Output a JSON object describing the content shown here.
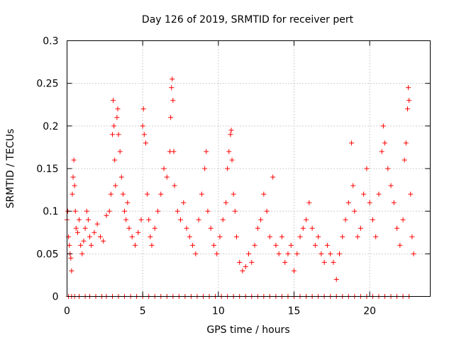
{
  "chart_data": {
    "type": "scatter",
    "title": "Day 126 of 2019, SRMTID for receiver pert",
    "xlabel": "GPS time / hours",
    "ylabel": "SRMTID / TECUs",
    "xlim": [
      0,
      24
    ],
    "ylim": [
      0,
      0.3
    ],
    "x_ticks": [
      0,
      5,
      10,
      15,
      20
    ],
    "x_tick_labels": [
      "0",
      "5",
      "10",
      "15",
      "20"
    ],
    "y_ticks": [
      0,
      0.05,
      0.1,
      0.15,
      0.2,
      0.25,
      0.3
    ],
    "y_tick_labels": [
      "0",
      "0.05",
      "0.1",
      "0.15",
      "0.2",
      "0.25",
      "0.3"
    ],
    "grid": true,
    "marker": "plus",
    "color": "#ff0000",
    "series": [
      {
        "name": "pert",
        "points": [
          [
            0.0,
            0.09
          ],
          [
            0.05,
            0.1
          ],
          [
            0.1,
            0.07
          ],
          [
            0.15,
            0.06
          ],
          [
            0.2,
            0.05
          ],
          [
            0.25,
            0.045
          ],
          [
            0.3,
            0.03
          ],
          [
            0.35,
            0.12
          ],
          [
            0.4,
            0.14
          ],
          [
            0.45,
            0.16
          ],
          [
            0.5,
            0.13
          ],
          [
            0.55,
            0.1
          ],
          [
            0.6,
            0.08
          ],
          [
            0.7,
            0.075
          ],
          [
            0.8,
            0.09
          ],
          [
            0.9,
            0.06
          ],
          [
            1.0,
            0.05
          ],
          [
            1.1,
            0.065
          ],
          [
            1.2,
            0.08
          ],
          [
            1.3,
            0.1
          ],
          [
            1.4,
            0.09
          ],
          [
            1.5,
            0.07
          ],
          [
            1.6,
            0.06
          ],
          [
            1.8,
            0.075
          ],
          [
            2.0,
            0.085
          ],
          [
            2.2,
            0.07
          ],
          [
            2.4,
            0.065
          ],
          [
            2.6,
            0.095
          ],
          [
            2.8,
            0.1
          ],
          [
            2.9,
            0.12
          ],
          [
            3.0,
            0.19
          ],
          [
            3.05,
            0.23
          ],
          [
            3.1,
            0.2
          ],
          [
            3.15,
            0.16
          ],
          [
            3.2,
            0.13
          ],
          [
            3.3,
            0.21
          ],
          [
            3.35,
            0.22
          ],
          [
            3.4,
            0.19
          ],
          [
            3.5,
            0.17
          ],
          [
            3.6,
            0.14
          ],
          [
            3.7,
            0.12
          ],
          [
            3.8,
            0.1
          ],
          [
            3.9,
            0.09
          ],
          [
            4.0,
            0.11
          ],
          [
            4.1,
            0.08
          ],
          [
            4.3,
            0.07
          ],
          [
            4.5,
            0.06
          ],
          [
            4.7,
            0.075
          ],
          [
            4.9,
            0.09
          ],
          [
            5.0,
            0.2
          ],
          [
            5.05,
            0.22
          ],
          [
            5.1,
            0.19
          ],
          [
            5.2,
            0.18
          ],
          [
            5.3,
            0.12
          ],
          [
            5.4,
            0.09
          ],
          [
            5.5,
            0.07
          ],
          [
            5.6,
            0.06
          ],
          [
            5.8,
            0.08
          ],
          [
            6.0,
            0.1
          ],
          [
            6.2,
            0.12
          ],
          [
            6.4,
            0.15
          ],
          [
            6.6,
            0.14
          ],
          [
            6.8,
            0.17
          ],
          [
            6.85,
            0.21
          ],
          [
            6.9,
            0.245
          ],
          [
            6.95,
            0.255
          ],
          [
            7.0,
            0.23
          ],
          [
            7.05,
            0.17
          ],
          [
            7.1,
            0.13
          ],
          [
            7.3,
            0.1
          ],
          [
            7.5,
            0.09
          ],
          [
            7.7,
            0.11
          ],
          [
            7.9,
            0.08
          ],
          [
            8.1,
            0.07
          ],
          [
            8.3,
            0.06
          ],
          [
            8.5,
            0.05
          ],
          [
            8.7,
            0.09
          ],
          [
            8.9,
            0.12
          ],
          [
            9.1,
            0.15
          ],
          [
            9.2,
            0.17
          ],
          [
            9.3,
            0.1
          ],
          [
            9.5,
            0.08
          ],
          [
            9.7,
            0.06
          ],
          [
            9.9,
            0.05
          ],
          [
            10.1,
            0.07
          ],
          [
            10.3,
            0.09
          ],
          [
            10.5,
            0.11
          ],
          [
            10.6,
            0.15
          ],
          [
            10.7,
            0.17
          ],
          [
            10.8,
            0.19
          ],
          [
            10.85,
            0.195
          ],
          [
            10.9,
            0.16
          ],
          [
            11.0,
            0.12
          ],
          [
            11.1,
            0.1
          ],
          [
            11.2,
            0.07
          ],
          [
            11.4,
            0.04
          ],
          [
            11.6,
            0.03
          ],
          [
            11.8,
            0.035
          ],
          [
            12.0,
            0.05
          ],
          [
            12.2,
            0.04
          ],
          [
            12.4,
            0.06
          ],
          [
            12.6,
            0.08
          ],
          [
            12.8,
            0.09
          ],
          [
            13.0,
            0.12
          ],
          [
            13.2,
            0.1
          ],
          [
            13.4,
            0.07
          ],
          [
            13.6,
            0.14
          ],
          [
            13.8,
            0.06
          ],
          [
            14.0,
            0.05
          ],
          [
            14.2,
            0.07
          ],
          [
            14.4,
            0.04
          ],
          [
            14.6,
            0.05
          ],
          [
            14.8,
            0.06
          ],
          [
            15.0,
            0.03
          ],
          [
            15.2,
            0.05
          ],
          [
            15.4,
            0.07
          ],
          [
            15.6,
            0.08
          ],
          [
            15.8,
            0.09
          ],
          [
            16.0,
            0.11
          ],
          [
            16.2,
            0.08
          ],
          [
            16.4,
            0.06
          ],
          [
            16.6,
            0.07
          ],
          [
            16.8,
            0.05
          ],
          [
            17.0,
            0.04
          ],
          [
            17.2,
            0.06
          ],
          [
            17.4,
            0.05
          ],
          [
            17.6,
            0.04
          ],
          [
            17.8,
            0.02
          ],
          [
            18.0,
            0.05
          ],
          [
            18.2,
            0.07
          ],
          [
            18.4,
            0.09
          ],
          [
            18.6,
            0.11
          ],
          [
            18.8,
            0.18
          ],
          [
            18.9,
            0.13
          ],
          [
            19.0,
            0.1
          ],
          [
            19.2,
            0.07
          ],
          [
            19.4,
            0.08
          ],
          [
            19.6,
            0.12
          ],
          [
            19.8,
            0.15
          ],
          [
            20.0,
            0.11
          ],
          [
            20.2,
            0.09
          ],
          [
            20.4,
            0.07
          ],
          [
            20.6,
            0.12
          ],
          [
            20.8,
            0.17
          ],
          [
            20.9,
            0.2
          ],
          [
            21.0,
            0.18
          ],
          [
            21.2,
            0.15
          ],
          [
            21.4,
            0.13
          ],
          [
            21.6,
            0.11
          ],
          [
            21.8,
            0.08
          ],
          [
            22.0,
            0.06
          ],
          [
            22.2,
            0.09
          ],
          [
            22.3,
            0.16
          ],
          [
            22.4,
            0.18
          ],
          [
            22.5,
            0.22
          ],
          [
            22.55,
            0.245
          ],
          [
            22.6,
            0.23
          ],
          [
            22.7,
            0.12
          ],
          [
            22.8,
            0.07
          ],
          [
            22.9,
            0.05
          ]
        ],
        "zero_points": [
          0.1,
          0.3,
          0.5,
          0.8,
          1.2,
          1.5,
          1.9,
          2.3,
          2.6,
          3.0,
          3.4,
          3.8,
          4.2,
          4.6,
          5.0,
          5.4,
          5.8,
          6.2,
          6.6,
          7.0,
          7.4,
          7.8,
          8.2,
          8.6,
          9.0,
          9.4,
          9.8,
          10.2,
          10.6,
          11.0,
          11.4,
          11.8,
          12.2,
          12.6,
          13.0,
          13.4,
          13.8,
          14.2,
          14.6,
          15.0,
          15.4,
          15.8,
          16.2,
          16.6,
          17.0,
          17.4,
          17.8,
          18.2,
          18.6,
          19.0,
          19.4,
          19.8,
          20.2,
          20.6,
          21.0,
          21.4,
          21.8,
          22.2,
          22.6
        ]
      }
    ]
  }
}
